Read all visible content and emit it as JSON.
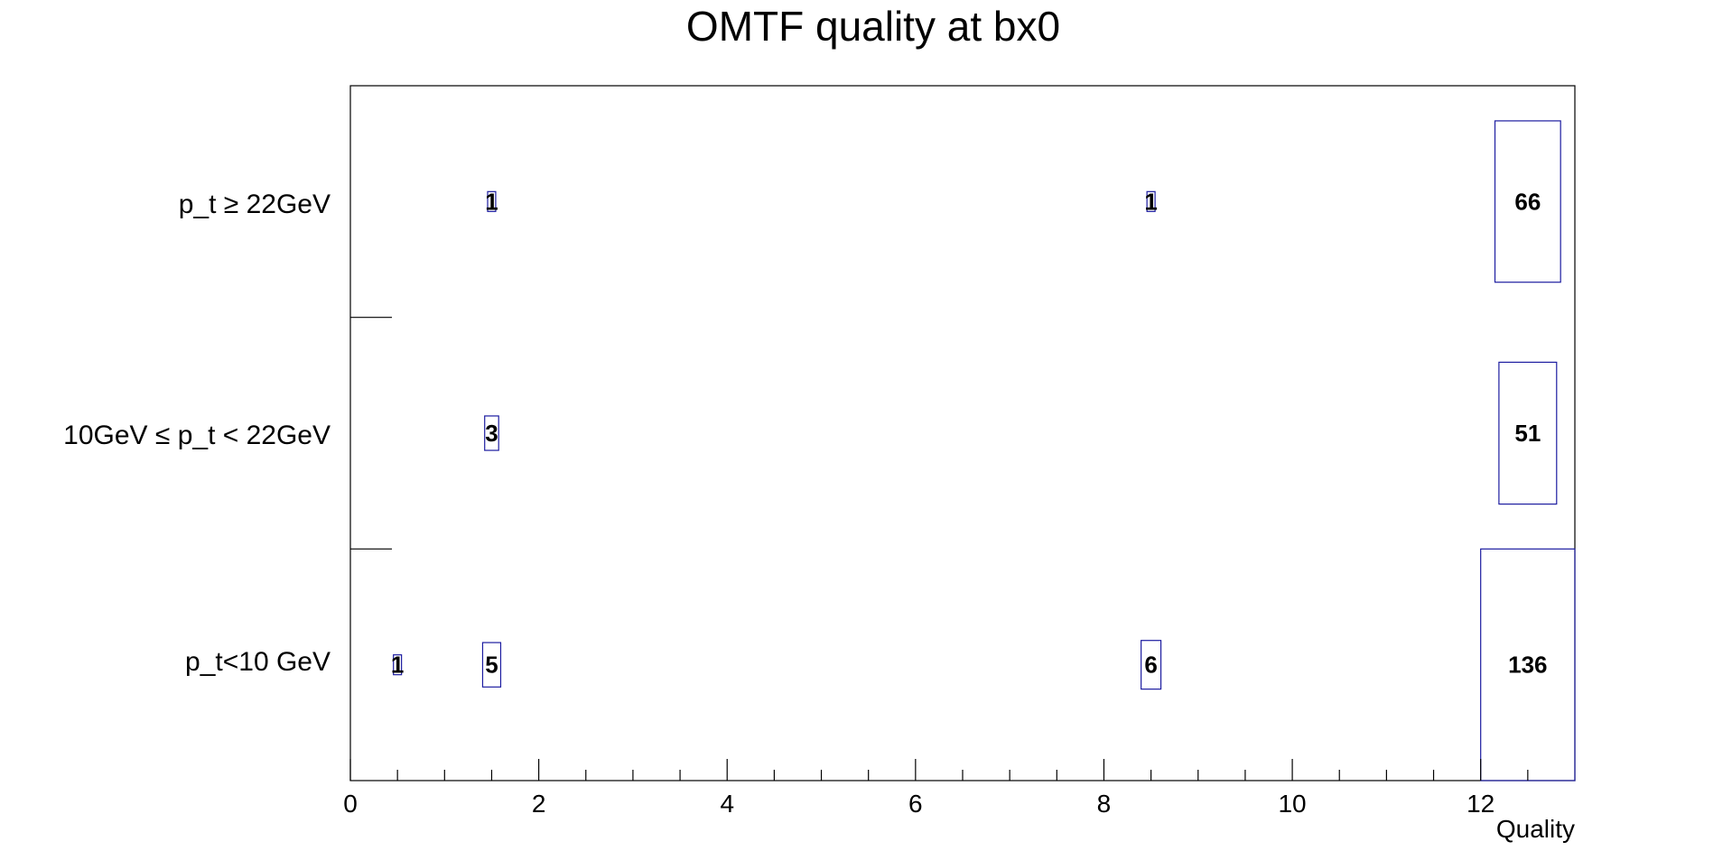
{
  "chart_data": {
    "type": "box2d",
    "title": "OMTF quality at bx0",
    "xlabel": "Quality",
    "ylabel": "",
    "xlim": [
      0,
      13
    ],
    "x_ticks": [
      "0",
      "2",
      "4",
      "6",
      "8",
      "10",
      "12"
    ],
    "categories": [
      "p_t<10 GeV",
      "10GeV ≤ p_t < 22GeV",
      "p_t ≥ 22GeV"
    ],
    "max_value": 136,
    "colors": {
      "box": "#1c1ca0",
      "frame": "#000000"
    },
    "cells": [
      {
        "x": 0.5,
        "row": 0,
        "value": 1,
        "label": "1"
      },
      {
        "x": 1.5,
        "row": 0,
        "value": 5,
        "label": "5"
      },
      {
        "x": 8.5,
        "row": 0,
        "value": 6,
        "label": "6"
      },
      {
        "x": 12.5,
        "row": 0,
        "value": 136,
        "label": "136"
      },
      {
        "x": 1.5,
        "row": 1,
        "value": 3,
        "label": "3"
      },
      {
        "x": 12.5,
        "row": 1,
        "value": 51,
        "label": "51"
      },
      {
        "x": 1.5,
        "row": 2,
        "value": 1,
        "label": "1"
      },
      {
        "x": 8.5,
        "row": 2,
        "value": 1,
        "label": "1"
      },
      {
        "x": 12.5,
        "row": 2,
        "value": 66,
        "label": "66"
      }
    ]
  }
}
